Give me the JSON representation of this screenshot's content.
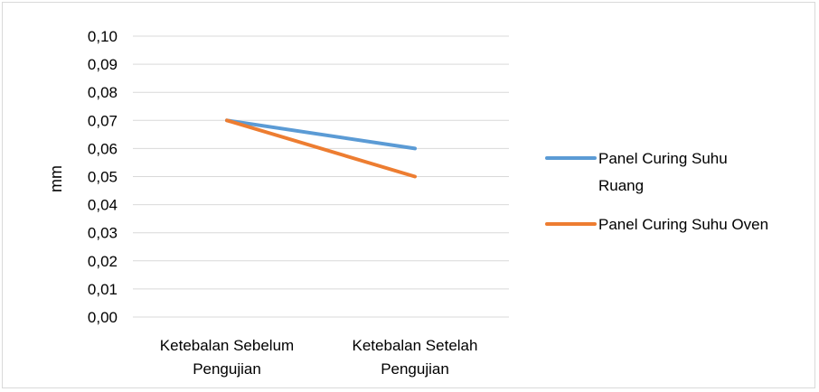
{
  "chart_data": {
    "type": "line",
    "categories": [
      [
        "Ketebalan Sebelum",
        "Pengujian"
      ],
      [
        "Ketebalan Setelah",
        "Pengujian"
      ]
    ],
    "series": [
      {
        "name": [
          "Panel Curing Suhu",
          "Ruang"
        ],
        "values": [
          0.07,
          0.06
        ],
        "color": "#5b9bd5"
      },
      {
        "name": [
          "Panel Curing Suhu Oven"
        ],
        "values": [
          0.07,
          0.05
        ],
        "color": "#ed7d31"
      }
    ],
    "yticks": [
      "0,00",
      "0,01",
      "0,02",
      "0,03",
      "0,04",
      "0,05",
      "0,06",
      "0,07",
      "0,08",
      "0,09",
      "0,10"
    ],
    "ylabel": "mm",
    "ylim": [
      0,
      0.1
    ],
    "grid": true,
    "legend": "right"
  }
}
